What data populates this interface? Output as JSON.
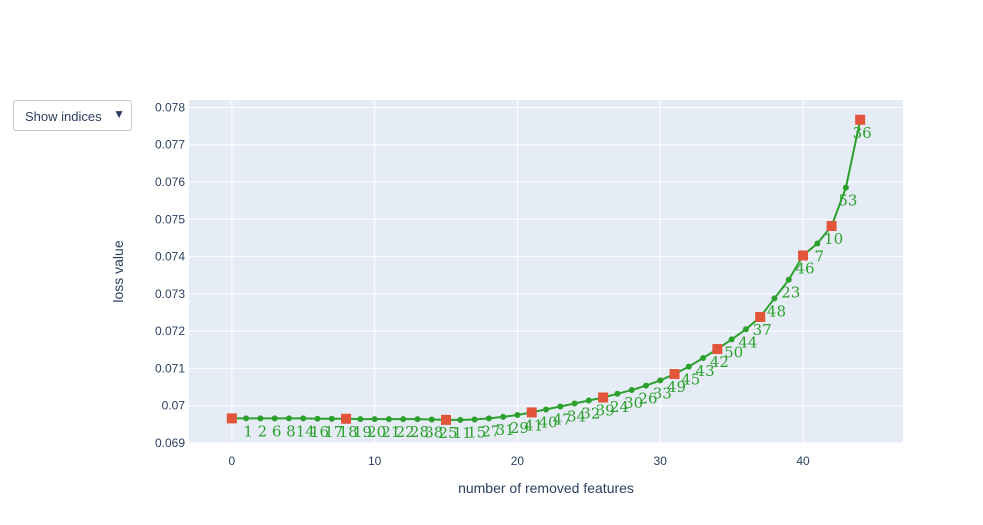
{
  "dropdown": {
    "label": "Show indices",
    "arrow": "▼"
  },
  "colors": {
    "plot_bg": "#e5ecf6",
    "grid": "#ffffff",
    "line": "#2ca02c",
    "marker_highlight": "#e2553b",
    "text": "#2a3f5f"
  },
  "chart_data": {
    "type": "line",
    "title": "",
    "xlabel": "number of removed features",
    "ylabel": "loss value",
    "xlim": [
      -3,
      47
    ],
    "ylim": [
      0.069,
      0.0782
    ],
    "xticks": [
      0,
      10,
      20,
      30,
      40
    ],
    "xtick_labels": [
      "0",
      "10",
      "20",
      "30",
      "40"
    ],
    "yticks": [
      0.069,
      0.07,
      0.071,
      0.072,
      0.073,
      0.074,
      0.075,
      0.076,
      0.077,
      0.078
    ],
    "ytick_labels": [
      "0.069",
      "0.07",
      "0.071",
      "0.072",
      "0.073",
      "0.074",
      "0.075",
      "0.076",
      "0.077",
      "0.078"
    ],
    "grid": true,
    "legend": "none",
    "series": [
      {
        "x": [
          0,
          1,
          2,
          3,
          4,
          5,
          6,
          7,
          8,
          9,
          10,
          11,
          12,
          13,
          14,
          15,
          16,
          17,
          18,
          19,
          20,
          21,
          22,
          23,
          24,
          25,
          26,
          27,
          28,
          29,
          30,
          31,
          32,
          33,
          34,
          35,
          36,
          37,
          38,
          39,
          40,
          41,
          42,
          43,
          44
        ],
        "y": [
          0.06966,
          0.06966,
          0.06966,
          0.06966,
          0.06966,
          0.06966,
          0.06965,
          0.06965,
          0.06965,
          0.06964,
          0.06964,
          0.06964,
          0.06964,
          0.06964,
          0.06963,
          0.06962,
          0.06962,
          0.06963,
          0.06966,
          0.0697,
          0.06975,
          0.06982,
          0.0699,
          0.06998,
          0.07006,
          0.07014,
          0.07022,
          0.07032,
          0.07042,
          0.07054,
          0.07068,
          0.07085,
          0.07105,
          0.07128,
          0.07152,
          0.07178,
          0.07205,
          0.07238,
          0.07288,
          0.07338,
          0.07403,
          0.07435,
          0.07482,
          0.07585,
          0.07767
        ],
        "labels": [
          "",
          "1",
          "2",
          "6",
          "8",
          "14",
          "16",
          "17",
          "18",
          "19",
          "20",
          "21",
          "22",
          "28",
          "38",
          "25",
          "11",
          "15",
          "27",
          "31",
          "29",
          "41",
          "40",
          "47",
          "34",
          "32",
          "39",
          "24",
          "30",
          "26",
          "33",
          "49",
          "45",
          "43",
          "42",
          "50",
          "44",
          "37",
          "48",
          "23",
          "46",
          "7",
          "10",
          "53",
          "36"
        ]
      }
    ],
    "highlight_x": [
      0,
      8,
      15,
      21,
      26,
      31,
      34,
      37,
      40,
      42,
      44
    ]
  }
}
